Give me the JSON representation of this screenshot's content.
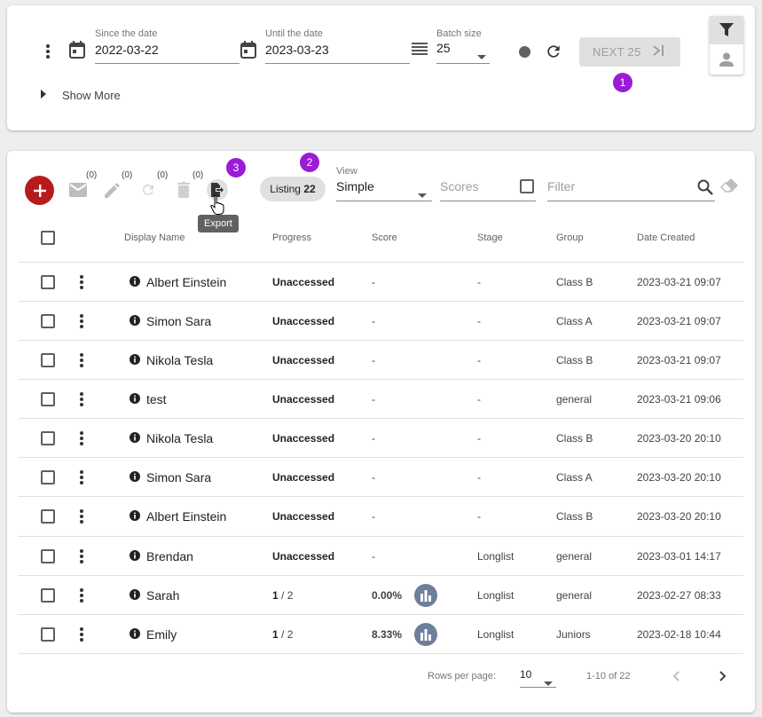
{
  "filters": {
    "since": {
      "label": "Since the date",
      "value": "2022-03-22"
    },
    "until": {
      "label": "Until the date",
      "value": "2023-03-23"
    },
    "batch": {
      "label": "Batch size",
      "value": "25"
    },
    "next_label": "NEXT 25",
    "show_more": "Show More"
  },
  "markers": {
    "one": "1",
    "two": "2",
    "three": "3"
  },
  "toolbar": {
    "email_count": "(0)",
    "edit_count": "(0)",
    "refresh_count": "(0)",
    "delete_count": "(0)",
    "export_tooltip": "Export",
    "listing_label": "Listing",
    "listing_count": "22",
    "view_label": "View",
    "view_value": "Simple",
    "scores_placeholder": "Scores",
    "filter_placeholder": "Filter"
  },
  "table": {
    "headers": {
      "name": "Display Name",
      "progress": "Progress",
      "score": "Score",
      "stage": "Stage",
      "group": "Group",
      "date": "Date Created"
    },
    "rows": [
      {
        "name": "Albert Einstein",
        "progress_done": "Unaccessed",
        "progress_total": "",
        "score": "-",
        "stage": "-",
        "group": "Class B",
        "date": "2023-03-21 09:07"
      },
      {
        "name": "Simon Sara",
        "progress_done": "Unaccessed",
        "progress_total": "",
        "score": "-",
        "stage": "-",
        "group": "Class A",
        "date": "2023-03-21 09:07"
      },
      {
        "name": "Nikola Tesla",
        "progress_done": "Unaccessed",
        "progress_total": "",
        "score": "-",
        "stage": "-",
        "group": "Class B",
        "date": "2023-03-21 09:07"
      },
      {
        "name": "test",
        "progress_done": "Unaccessed",
        "progress_total": "",
        "score": "-",
        "stage": "-",
        "group": "general",
        "date": "2023-03-21 09:06"
      },
      {
        "name": "Nikola Tesla",
        "progress_done": "Unaccessed",
        "progress_total": "",
        "score": "-",
        "stage": "-",
        "group": "Class B",
        "date": "2023-03-20 20:10"
      },
      {
        "name": "Simon Sara",
        "progress_done": "Unaccessed",
        "progress_total": "",
        "score": "-",
        "stage": "-",
        "group": "Class A",
        "date": "2023-03-20 20:10"
      },
      {
        "name": "Albert Einstein",
        "progress_done": "Unaccessed",
        "progress_total": "",
        "score": "-",
        "stage": "-",
        "group": "Class B",
        "date": "2023-03-20 20:10"
      },
      {
        "name": "Brendan",
        "progress_done": "Unaccessed",
        "progress_total": "",
        "score": "-",
        "stage": "Longlist",
        "group": "general",
        "date": "2023-03-01 14:17"
      },
      {
        "name": "Sarah",
        "progress_done": "1",
        "progress_total": " / 2",
        "score": "0.00%",
        "stage": "Longlist",
        "group": "general",
        "date": "2023-02-27 08:33"
      },
      {
        "name": "Emily",
        "progress_done": "1",
        "progress_total": " / 2",
        "score": "8.33%",
        "stage": "Longlist",
        "group": "Juniors",
        "date": "2023-02-18 10:44"
      }
    ]
  },
  "pagination": {
    "rows_per_page_label": "Rows per page:",
    "rows_per_page": "10",
    "range": "1-10 of 22"
  },
  "colors": {
    "add_button": "#b71c1c",
    "marker": "#9c1bd6",
    "chart_button": "#6d7f9a"
  }
}
